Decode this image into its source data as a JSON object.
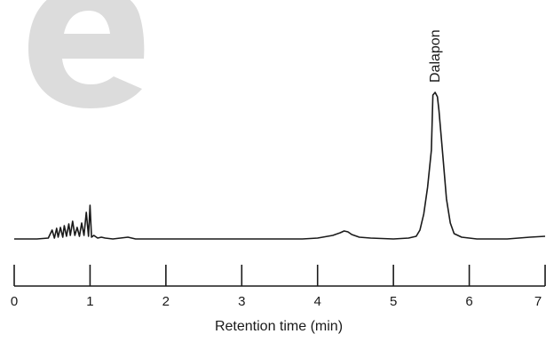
{
  "chart_data": {
    "type": "line",
    "title": "",
    "xlabel": "Retention time (min)",
    "ylabel": "",
    "xlim": [
      0,
      7
    ],
    "x_ticks": [
      0,
      1,
      2,
      3,
      4,
      5,
      6,
      7
    ],
    "x_tick_labels": [
      "0",
      "1",
      "2",
      "3",
      "4",
      "5",
      "6",
      "7"
    ],
    "y_axis_shown": false,
    "grid": false,
    "legend": "none",
    "colors": {
      "trace": "#1a1a1a",
      "axis": "#1a1a1a",
      "watermark": "#dcdcdc"
    },
    "annotations": [
      {
        "text": "Dalapon",
        "x": 5.55,
        "orientation": "vertical"
      }
    ],
    "series": [
      {
        "x": [
          0.0,
          0.3,
          0.45,
          0.5,
          0.53,
          0.56,
          0.58,
          0.61,
          0.64,
          0.66,
          0.69,
          0.72,
          0.74,
          0.77,
          0.8,
          0.83,
          0.86,
          0.89,
          0.92,
          0.95,
          0.98,
          1.0,
          1.02,
          1.05,
          1.1,
          1.15,
          1.2,
          1.3,
          1.4,
          1.5,
          1.55,
          1.6,
          1.8,
          2.0,
          2.5,
          3.0,
          3.5,
          3.8,
          4.0,
          4.2,
          4.3,
          4.35,
          4.4,
          4.45,
          4.55,
          4.7,
          5.0,
          5.2,
          5.3,
          5.35,
          5.4,
          5.45,
          5.5,
          5.52,
          5.55,
          5.58,
          5.6,
          5.65,
          5.7,
          5.75,
          5.8,
          5.9,
          6.1,
          6.5,
          6.8,
          7.0
        ],
        "y": [
          0.0,
          0.0,
          0.01,
          0.1,
          0.01,
          0.12,
          0.02,
          0.13,
          0.02,
          0.15,
          0.03,
          0.17,
          0.04,
          0.2,
          0.04,
          0.13,
          0.03,
          0.18,
          0.04,
          0.3,
          0.03,
          0.38,
          0.02,
          0.04,
          0.01,
          0.02,
          0.01,
          0.0,
          0.01,
          0.02,
          0.01,
          0.0,
          0.0,
          0.0,
          0.0,
          0.0,
          0.0,
          0.0,
          0.01,
          0.04,
          0.07,
          0.09,
          0.08,
          0.05,
          0.02,
          0.01,
          0.0,
          0.01,
          0.03,
          0.1,
          0.28,
          0.58,
          1.0,
          1.62,
          1.65,
          1.6,
          1.45,
          0.95,
          0.45,
          0.18,
          0.06,
          0.02,
          0.0,
          0.0,
          0.02,
          0.03
        ]
      }
    ]
  }
}
